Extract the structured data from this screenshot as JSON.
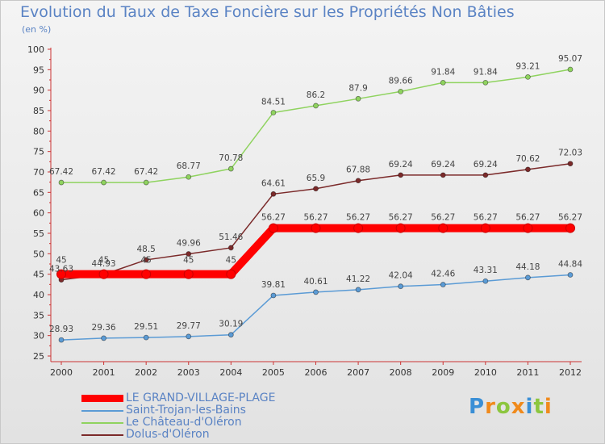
{
  "chart_data": {
    "type": "line",
    "title": "Evolution du Taux de Taxe Foncière sur les Propriétés Non Bâties",
    "subtitle": "(en %)",
    "xlabel": "",
    "ylabel": "",
    "x": [
      "2000",
      "2001",
      "2002",
      "2003",
      "2004",
      "2005",
      "2006",
      "2007",
      "2008",
      "2009",
      "2010",
      "2011",
      "2012"
    ],
    "yticks": [
      25,
      30,
      35,
      40,
      45,
      50,
      55,
      60,
      65,
      70,
      75,
      80,
      85,
      90,
      95,
      100
    ],
    "ylim": [
      25,
      100
    ],
    "grid": false,
    "legend_position": "bottom-left",
    "series": [
      {
        "name": "LE GRAND-VILLAGE-PLAGE",
        "color": "#ff0000",
        "values": [
          45,
          45,
          45,
          45,
          45,
          56.27,
          56.27,
          56.27,
          56.27,
          56.27,
          56.27,
          56.27,
          56.27
        ],
        "labels": [
          "45",
          "45",
          "45",
          "45",
          "45",
          "56.27",
          "56.27",
          "56.27",
          "56.27",
          "56.27",
          "56.27",
          "56.27",
          "56.27"
        ]
      },
      {
        "name": "Saint-Trojan-les-Bains",
        "color": "#5b9bd5",
        "values": [
          28.93,
          29.36,
          29.51,
          29.77,
          30.19,
          39.81,
          40.61,
          41.22,
          42.04,
          42.46,
          43.31,
          44.18,
          44.84
        ],
        "labels": [
          "28.93",
          "29.36",
          "29.51",
          "29.77",
          "30.19",
          "39.81",
          "40.61",
          "41.22",
          "42.04",
          "42.46",
          "43.31",
          "44.18",
          "44.84"
        ]
      },
      {
        "name": "Le Château-d'Oléron",
        "color": "#8fd35f",
        "values": [
          67.42,
          67.42,
          67.42,
          68.77,
          70.78,
          84.51,
          86.2,
          87.9,
          89.66,
          91.84,
          91.84,
          93.21,
          95.07
        ],
        "labels": [
          "67.42",
          "67.42",
          "67.42",
          "68.77",
          "70.78",
          "84.51",
          "86.2",
          "87.9",
          "89.66",
          "91.84",
          "91.84",
          "93.21",
          "95.07"
        ]
      },
      {
        "name": "Dolus-d'Oléron",
        "color": "#7b2a2a",
        "values": [
          43.63,
          44.93,
          48.5,
          49.96,
          51.46,
          64.61,
          65.9,
          67.88,
          69.24,
          69.24,
          69.24,
          70.62,
          72.03
        ],
        "labels": [
          "43.63",
          "44.93",
          "48.5",
          "49.96",
          "51.46",
          "64.61",
          "65.9",
          "67.88",
          "69.24",
          "69.24",
          "69.24",
          "70.62",
          "72.03"
        ]
      }
    ]
  },
  "legend": {
    "items": [
      {
        "label": "LE GRAND-VILLAGE-PLAGE",
        "color": "#ff0000"
      },
      {
        "label": "Saint-Trojan-les-Bains",
        "color": "#5b9bd5"
      },
      {
        "label": "Le Château-d'Oléron",
        "color": "#8fd35f"
      },
      {
        "label": "Dolus-d'Oléron",
        "color": "#7b2a2a"
      }
    ]
  },
  "logo": {
    "text": "Proxiti",
    "colors": [
      "#3a8fd6",
      "#f08a1c",
      "#8cc63f",
      "#f08a1c",
      "#3a8fd6",
      "#8cc63f",
      "#f08a1c"
    ]
  }
}
